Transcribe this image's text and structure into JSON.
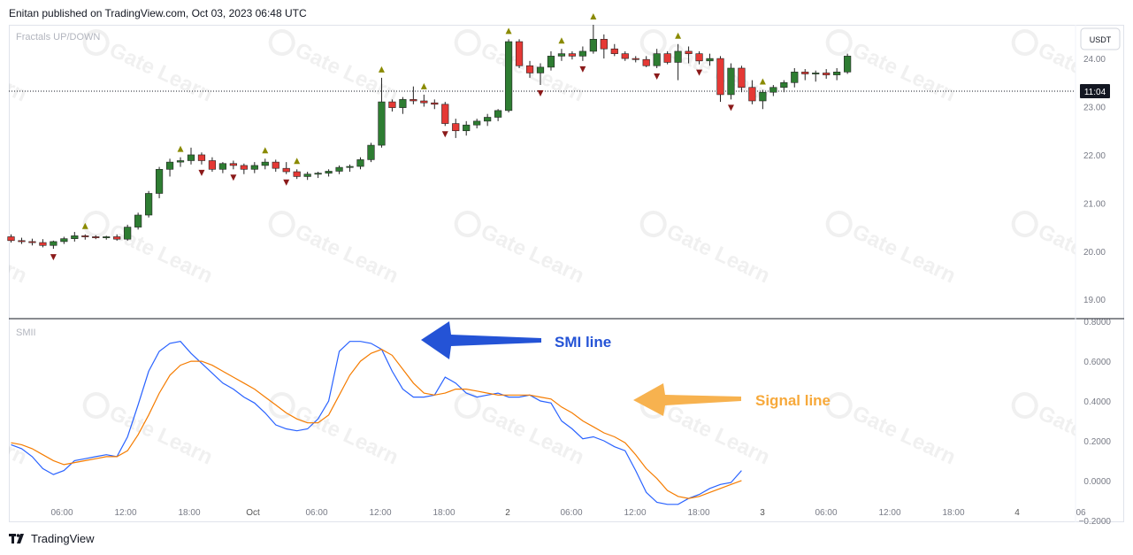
{
  "header": {
    "publish_line": "Enitan published on TradingView.com, Oct 03, 2023 06:48 UTC"
  },
  "price_pane": {
    "indicator_label": "Fractals UP/DOWN",
    "currency_button": "USDT",
    "last_price_label": "11:04"
  },
  "osc_pane": {
    "indicator_label": "SMII"
  },
  "annotations": {
    "smi": {
      "text": "SMI line",
      "color": "#2453d6"
    },
    "signal": {
      "text": "Signal line",
      "color": "#f7a93b"
    }
  },
  "footer": {
    "brand": "TradingView"
  },
  "watermark": {
    "text": "Gate Learn"
  },
  "colors": {
    "up": "#2e7d32",
    "down": "#e53935",
    "fractal_up": "#8a8a00",
    "fractal_down": "#8b1a1a",
    "smi": "#2962ff",
    "signal": "#f57c00"
  },
  "chart_data": [
    {
      "type": "candlestick",
      "title": "Fractals UP/DOWN",
      "y_axis": {
        "ticks": [
          "19.00",
          "20.00",
          "21.00",
          "22.00",
          "23.00",
          "24.00"
        ],
        "ylim": [
          18.6,
          24.7
        ]
      },
      "x_axis": {
        "ticks": [
          "06:00",
          "12:00",
          "18:00",
          "Oct",
          "06:00",
          "12:00",
          "18:00",
          "2",
          "06:00",
          "12:00",
          "18:00",
          "3",
          "06:00",
          "12:00",
          "18:00",
          "4",
          "06"
        ]
      },
      "candles": [
        [
          20.3,
          20.35,
          20.18,
          20.22
        ],
        [
          20.22,
          20.28,
          20.15,
          20.2
        ],
        [
          20.2,
          20.26,
          20.12,
          20.18
        ],
        [
          20.18,
          20.25,
          20.08,
          20.12
        ],
        [
          20.12,
          20.22,
          20.05,
          20.2
        ],
        [
          20.2,
          20.3,
          20.15,
          20.26
        ],
        [
          20.26,
          20.4,
          20.2,
          20.32
        ],
        [
          20.32,
          20.35,
          20.24,
          20.3
        ],
        [
          20.3,
          20.33,
          20.25,
          20.28
        ],
        [
          20.28,
          20.32,
          20.24,
          20.3
        ],
        [
          20.3,
          20.35,
          20.22,
          20.25
        ],
        [
          20.25,
          20.55,
          20.22,
          20.5
        ],
        [
          20.5,
          20.8,
          20.45,
          20.75
        ],
        [
          20.75,
          21.25,
          20.7,
          21.2
        ],
        [
          21.2,
          21.75,
          21.1,
          21.7
        ],
        [
          21.7,
          21.92,
          21.55,
          21.85
        ],
        [
          21.85,
          21.95,
          21.75,
          21.88
        ],
        [
          21.88,
          22.15,
          21.8,
          22.0
        ],
        [
          22.0,
          22.05,
          21.8,
          21.88
        ],
        [
          21.88,
          21.95,
          21.65,
          21.7
        ],
        [
          21.7,
          21.85,
          21.62,
          21.82
        ],
        [
          21.82,
          21.88,
          21.7,
          21.78
        ],
        [
          21.78,
          21.82,
          21.6,
          21.7
        ],
        [
          21.7,
          21.85,
          21.62,
          21.78
        ],
        [
          21.78,
          21.92,
          21.7,
          21.85
        ],
        [
          21.85,
          21.9,
          21.65,
          21.72
        ],
        [
          21.72,
          21.85,
          21.6,
          21.65
        ],
        [
          21.65,
          21.7,
          21.5,
          21.55
        ],
        [
          21.55,
          21.65,
          21.48,
          21.6
        ],
        [
          21.6,
          21.65,
          21.52,
          21.62
        ],
        [
          21.62,
          21.7,
          21.55,
          21.66
        ],
        [
          21.66,
          21.78,
          21.6,
          21.74
        ],
        [
          21.74,
          21.8,
          21.65,
          21.76
        ],
        [
          21.76,
          21.95,
          21.7,
          21.9
        ],
        [
          21.9,
          22.25,
          21.85,
          22.2
        ],
        [
          22.2,
          23.6,
          22.15,
          23.1
        ],
        [
          23.1,
          23.15,
          22.9,
          22.98
        ],
        [
          22.98,
          23.2,
          22.85,
          23.15
        ],
        [
          23.15,
          23.42,
          23.05,
          23.12
        ],
        [
          23.12,
          23.25,
          23.0,
          23.08
        ],
        [
          23.08,
          23.15,
          22.95,
          23.05
        ],
        [
          23.05,
          23.1,
          22.6,
          22.65
        ],
        [
          22.65,
          22.75,
          22.35,
          22.5
        ],
        [
          22.5,
          22.7,
          22.4,
          22.62
        ],
        [
          22.62,
          22.75,
          22.55,
          22.7
        ],
        [
          22.7,
          22.85,
          22.6,
          22.78
        ],
        [
          22.78,
          22.95,
          22.7,
          22.92
        ],
        [
          22.92,
          24.4,
          22.88,
          24.35
        ],
        [
          24.35,
          24.4,
          23.8,
          23.85
        ],
        [
          23.85,
          23.95,
          23.6,
          23.7
        ],
        [
          23.7,
          23.9,
          23.45,
          23.82
        ],
        [
          23.82,
          24.15,
          23.75,
          24.05
        ],
        [
          24.05,
          24.2,
          23.95,
          24.1
        ],
        [
          24.1,
          24.15,
          23.98,
          24.05
        ],
        [
          24.05,
          24.25,
          23.95,
          24.15
        ],
        [
          24.15,
          24.7,
          24.1,
          24.4
        ],
        [
          24.4,
          24.5,
          24.0,
          24.2
        ],
        [
          24.2,
          24.3,
          24.05,
          24.1
        ],
        [
          24.1,
          24.15,
          23.95,
          24.0
        ],
        [
          24.0,
          24.05,
          23.92,
          23.98
        ],
        [
          23.98,
          24.05,
          23.82,
          23.85
        ],
        [
          23.85,
          24.2,
          23.8,
          24.1
        ],
        [
          24.1,
          24.15,
          23.88,
          23.92
        ],
        [
          23.92,
          24.3,
          23.55,
          24.15
        ],
        [
          24.15,
          24.25,
          23.9,
          24.1
        ],
        [
          24.1,
          24.15,
          23.88,
          23.95
        ],
        [
          23.95,
          24.1,
          23.85,
          24.0
        ],
        [
          24.0,
          24.05,
          23.1,
          23.25
        ],
        [
          23.25,
          23.9,
          23.15,
          23.8
        ],
        [
          23.8,
          23.85,
          23.3,
          23.4
        ],
        [
          23.4,
          23.55,
          23.05,
          23.12
        ],
        [
          23.12,
          23.35,
          22.95,
          23.3
        ],
        [
          23.3,
          23.45,
          23.22,
          23.4
        ],
        [
          23.4,
          23.55,
          23.3,
          23.5
        ],
        [
          23.5,
          23.8,
          23.4,
          23.72
        ],
        [
          23.72,
          23.78,
          23.55,
          23.68
        ],
        [
          23.68,
          23.75,
          23.52,
          23.7
        ],
        [
          23.7,
          23.78,
          23.58,
          23.66
        ],
        [
          23.66,
          23.8,
          23.55,
          23.72
        ],
        [
          23.72,
          24.1,
          23.68,
          24.05
        ]
      ],
      "fractals_up_index": [
        7,
        16,
        24,
        27,
        35,
        39,
        47,
        52,
        55,
        63,
        71
      ],
      "fractals_down_index": [
        4,
        18,
        21,
        26,
        41,
        50,
        54,
        61,
        65,
        68
      ]
    },
    {
      "type": "line",
      "title": "SMII",
      "y_axis": {
        "ticks": [
          "0.8000",
          "0.6000",
          "0.4000",
          "0.2000",
          "0.0000",
          "−0.2000"
        ],
        "ylim": [
          -0.21,
          0.81
        ]
      },
      "series": [
        {
          "name": "SMI line",
          "values": [
            0.18,
            0.16,
            0.12,
            0.06,
            0.03,
            0.05,
            0.1,
            0.11,
            0.12,
            0.13,
            0.12,
            0.22,
            0.38,
            0.55,
            0.65,
            0.69,
            0.7,
            0.64,
            0.59,
            0.54,
            0.49,
            0.46,
            0.42,
            0.39,
            0.34,
            0.28,
            0.26,
            0.25,
            0.26,
            0.31,
            0.4,
            0.65,
            0.7,
            0.7,
            0.69,
            0.66,
            0.55,
            0.46,
            0.42,
            0.42,
            0.43,
            0.52,
            0.49,
            0.44,
            0.42,
            0.43,
            0.44,
            0.42,
            0.42,
            0.43,
            0.4,
            0.39,
            0.3,
            0.26,
            0.21,
            0.22,
            0.2,
            0.17,
            0.15,
            0.05,
            -0.06,
            -0.11,
            -0.12,
            -0.12,
            -0.09,
            -0.07,
            -0.04,
            -0.02,
            -0.01,
            0.05
          ]
        },
        {
          "name": "Signal line",
          "values": [
            0.19,
            0.18,
            0.16,
            0.13,
            0.1,
            0.08,
            0.09,
            0.1,
            0.11,
            0.12,
            0.12,
            0.15,
            0.23,
            0.33,
            0.44,
            0.53,
            0.58,
            0.6,
            0.6,
            0.58,
            0.55,
            0.52,
            0.49,
            0.46,
            0.42,
            0.38,
            0.34,
            0.31,
            0.29,
            0.29,
            0.33,
            0.43,
            0.53,
            0.6,
            0.64,
            0.66,
            0.63,
            0.56,
            0.49,
            0.44,
            0.43,
            0.44,
            0.46,
            0.46,
            0.45,
            0.44,
            0.43,
            0.43,
            0.43,
            0.43,
            0.42,
            0.41,
            0.37,
            0.34,
            0.3,
            0.27,
            0.24,
            0.22,
            0.19,
            0.13,
            0.06,
            0.01,
            -0.05,
            -0.08,
            -0.09,
            -0.08,
            -0.06,
            -0.04,
            -0.02,
            0.0
          ]
        }
      ]
    }
  ]
}
